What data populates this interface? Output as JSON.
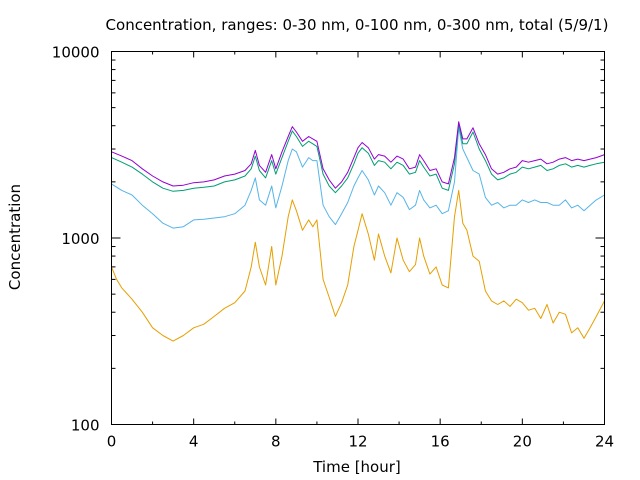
{
  "chart_data": {
    "type": "line",
    "title": "Concentration, ranges: 0-30 nm, 0-100 nm, 0-300 nm, total (5/9/1)",
    "xlabel": "Time [hour]",
    "ylabel": "Concentration",
    "xlim": [
      0,
      24
    ],
    "ylim": [
      100,
      10000
    ],
    "y_scale": "log",
    "x_ticks": [
      0,
      4,
      8,
      12,
      16,
      20,
      24
    ],
    "y_tick_labels": [
      "100",
      "1000",
      "10000"
    ],
    "grid": false,
    "legend": "none",
    "series": [
      {
        "color": "#e69f00",
        "x": [
          0,
          0.25,
          0.5,
          1,
          1.5,
          2,
          2.5,
          3,
          3.5,
          4,
          4.5,
          5,
          5.5,
          6,
          6.5,
          6.8,
          7,
          7.2,
          7.5,
          7.8,
          8,
          8.3,
          8.6,
          8.8,
          9,
          9.3,
          9.6,
          9.8,
          10,
          10.3,
          10.6,
          10.9,
          11.2,
          11.5,
          11.8,
          12,
          12.2,
          12.5,
          12.8,
          13,
          13.3,
          13.6,
          13.9,
          14.2,
          14.5,
          14.8,
          15,
          15.2,
          15.5,
          15.8,
          16.1,
          16.4,
          16.7,
          16.9,
          17.1,
          17.3,
          17.6,
          17.9,
          18.2,
          18.5,
          18.8,
          19.1,
          19.4,
          19.7,
          20,
          20.3,
          20.6,
          20.9,
          21.2,
          21.5,
          21.8,
          22.1,
          22.4,
          22.7,
          23,
          23.3,
          23.6,
          24
        ],
        "y": [
          700,
          600,
          540,
          470,
          400,
          330,
          300,
          280,
          300,
          330,
          345,
          380,
          420,
          450,
          520,
          700,
          950,
          700,
          560,
          900,
          560,
          800,
          1300,
          1600,
          1400,
          1100,
          1250,
          1150,
          1250,
          600,
          480,
          380,
          450,
          560,
          900,
          1100,
          1350,
          1050,
          760,
          1050,
          800,
          650,
          1000,
          760,
          660,
          720,
          1000,
          800,
          640,
          700,
          560,
          540,
          1300,
          1800,
          1200,
          1100,
          800,
          750,
          520,
          460,
          440,
          460,
          430,
          470,
          450,
          410,
          420,
          370,
          440,
          350,
          400,
          390,
          310,
          330,
          290,
          330,
          380,
          460
        ]
      },
      {
        "color": "#56b4e9",
        "x": [
          0,
          0.5,
          1,
          1.5,
          2,
          2.5,
          3,
          3.5,
          4,
          4.5,
          5,
          5.5,
          6,
          6.5,
          6.8,
          7,
          7.2,
          7.5,
          7.8,
          8,
          8.3,
          8.6,
          8.8,
          9,
          9.3,
          9.6,
          9.8,
          10,
          10.3,
          10.6,
          10.9,
          11.2,
          11.5,
          11.8,
          12,
          12.2,
          12.5,
          12.8,
          13,
          13.3,
          13.6,
          13.9,
          14.2,
          14.5,
          14.8,
          15,
          15.2,
          15.5,
          15.8,
          16.1,
          16.4,
          16.7,
          16.9,
          17.1,
          17.3,
          17.6,
          17.9,
          18.2,
          18.5,
          18.8,
          19.1,
          19.4,
          19.7,
          20,
          20.3,
          20.6,
          20.9,
          21.2,
          21.5,
          21.8,
          22.1,
          22.4,
          22.7,
          23,
          23.3,
          23.6,
          24
        ],
        "y": [
          1950,
          1800,
          1700,
          1500,
          1350,
          1200,
          1130,
          1150,
          1250,
          1260,
          1280,
          1300,
          1350,
          1500,
          1800,
          2100,
          1600,
          1500,
          1900,
          1450,
          1900,
          2600,
          3000,
          2900,
          2400,
          2700,
          2600,
          2600,
          1500,
          1300,
          1180,
          1350,
          1550,
          1900,
          2100,
          2300,
          2050,
          1700,
          1900,
          1750,
          1500,
          1750,
          1650,
          1420,
          1500,
          1800,
          1600,
          1450,
          1500,
          1350,
          1400,
          2000,
          3900,
          3000,
          2700,
          2300,
          2200,
          1650,
          1500,
          1550,
          1450,
          1500,
          1500,
          1600,
          1550,
          1600,
          1550,
          1550,
          1500,
          1500,
          1600,
          1450,
          1500,
          1400,
          1500,
          1600,
          1700
        ]
      },
      {
        "color": "#009e73",
        "x": [
          0,
          0.5,
          1,
          1.5,
          2,
          2.5,
          3,
          3.5,
          4,
          4.5,
          5,
          5.5,
          6,
          6.5,
          6.8,
          7,
          7.2,
          7.5,
          7.8,
          8,
          8.3,
          8.6,
          8.8,
          9,
          9.3,
          9.6,
          9.8,
          10,
          10.3,
          10.6,
          10.9,
          11.2,
          11.5,
          11.8,
          12,
          12.2,
          12.5,
          12.8,
          13,
          13.3,
          13.6,
          13.9,
          14.2,
          14.5,
          14.8,
          15,
          15.2,
          15.5,
          15.8,
          16.1,
          16.4,
          16.7,
          16.9,
          17.1,
          17.3,
          17.6,
          17.9,
          18.2,
          18.5,
          18.8,
          19.1,
          19.4,
          19.7,
          20,
          20.3,
          20.6,
          20.9,
          21.2,
          21.5,
          21.8,
          22.1,
          22.4,
          22.7,
          23,
          23.3,
          23.6,
          24
        ],
        "y": [
          2700,
          2550,
          2400,
          2200,
          2000,
          1850,
          1780,
          1800,
          1850,
          1870,
          1900,
          2000,
          2050,
          2150,
          2350,
          2750,
          2300,
          2100,
          2600,
          2200,
          2700,
          3300,
          3750,
          3500,
          3100,
          3300,
          3200,
          3100,
          2200,
          1900,
          1750,
          1900,
          2100,
          2500,
          2850,
          3050,
          2850,
          2450,
          2600,
          2550,
          2350,
          2550,
          2450,
          2200,
          2250,
          2600,
          2400,
          2150,
          2200,
          1850,
          1800,
          2500,
          4100,
          3200,
          3200,
          3700,
          3000,
          2600,
          2200,
          2050,
          2100,
          2200,
          2250,
          2400,
          2350,
          2400,
          2450,
          2300,
          2350,
          2450,
          2500,
          2400,
          2450,
          2400,
          2450,
          2500,
          2550
        ]
      },
      {
        "color": "#9400d3",
        "x": [
          0,
          0.5,
          1,
          1.5,
          2,
          2.5,
          3,
          3.5,
          4,
          4.5,
          5,
          5.5,
          6,
          6.5,
          6.8,
          7,
          7.2,
          7.5,
          7.8,
          8,
          8.3,
          8.6,
          8.8,
          9,
          9.3,
          9.6,
          9.8,
          10,
          10.3,
          10.6,
          10.9,
          11.2,
          11.5,
          11.8,
          12,
          12.2,
          12.5,
          12.8,
          13,
          13.3,
          13.6,
          13.9,
          14.2,
          14.5,
          14.8,
          15,
          15.2,
          15.5,
          15.8,
          16.1,
          16.4,
          16.7,
          16.9,
          17.1,
          17.3,
          17.6,
          17.9,
          18.2,
          18.5,
          18.8,
          19.1,
          19.4,
          19.7,
          20,
          20.3,
          20.6,
          20.9,
          21.2,
          21.5,
          21.8,
          22.1,
          22.4,
          22.7,
          23,
          23.3,
          23.6,
          24
        ],
        "y": [
          2900,
          2750,
          2600,
          2350,
          2150,
          2000,
          1900,
          1920,
          1980,
          2000,
          2050,
          2150,
          2200,
          2300,
          2500,
          2950,
          2450,
          2250,
          2800,
          2350,
          2900,
          3500,
          3950,
          3700,
          3300,
          3500,
          3400,
          3300,
          2350,
          2050,
          1850,
          2000,
          2250,
          2700,
          3050,
          3250,
          3050,
          2650,
          2800,
          2750,
          2550,
          2750,
          2650,
          2350,
          2400,
          2800,
          2600,
          2300,
          2350,
          2000,
          1950,
          2700,
          4200,
          3400,
          3400,
          3900,
          3200,
          2800,
          2350,
          2200,
          2250,
          2350,
          2400,
          2600,
          2550,
          2600,
          2650,
          2500,
          2550,
          2650,
          2700,
          2600,
          2650,
          2600,
          2650,
          2700,
          2800
        ]
      }
    ]
  }
}
